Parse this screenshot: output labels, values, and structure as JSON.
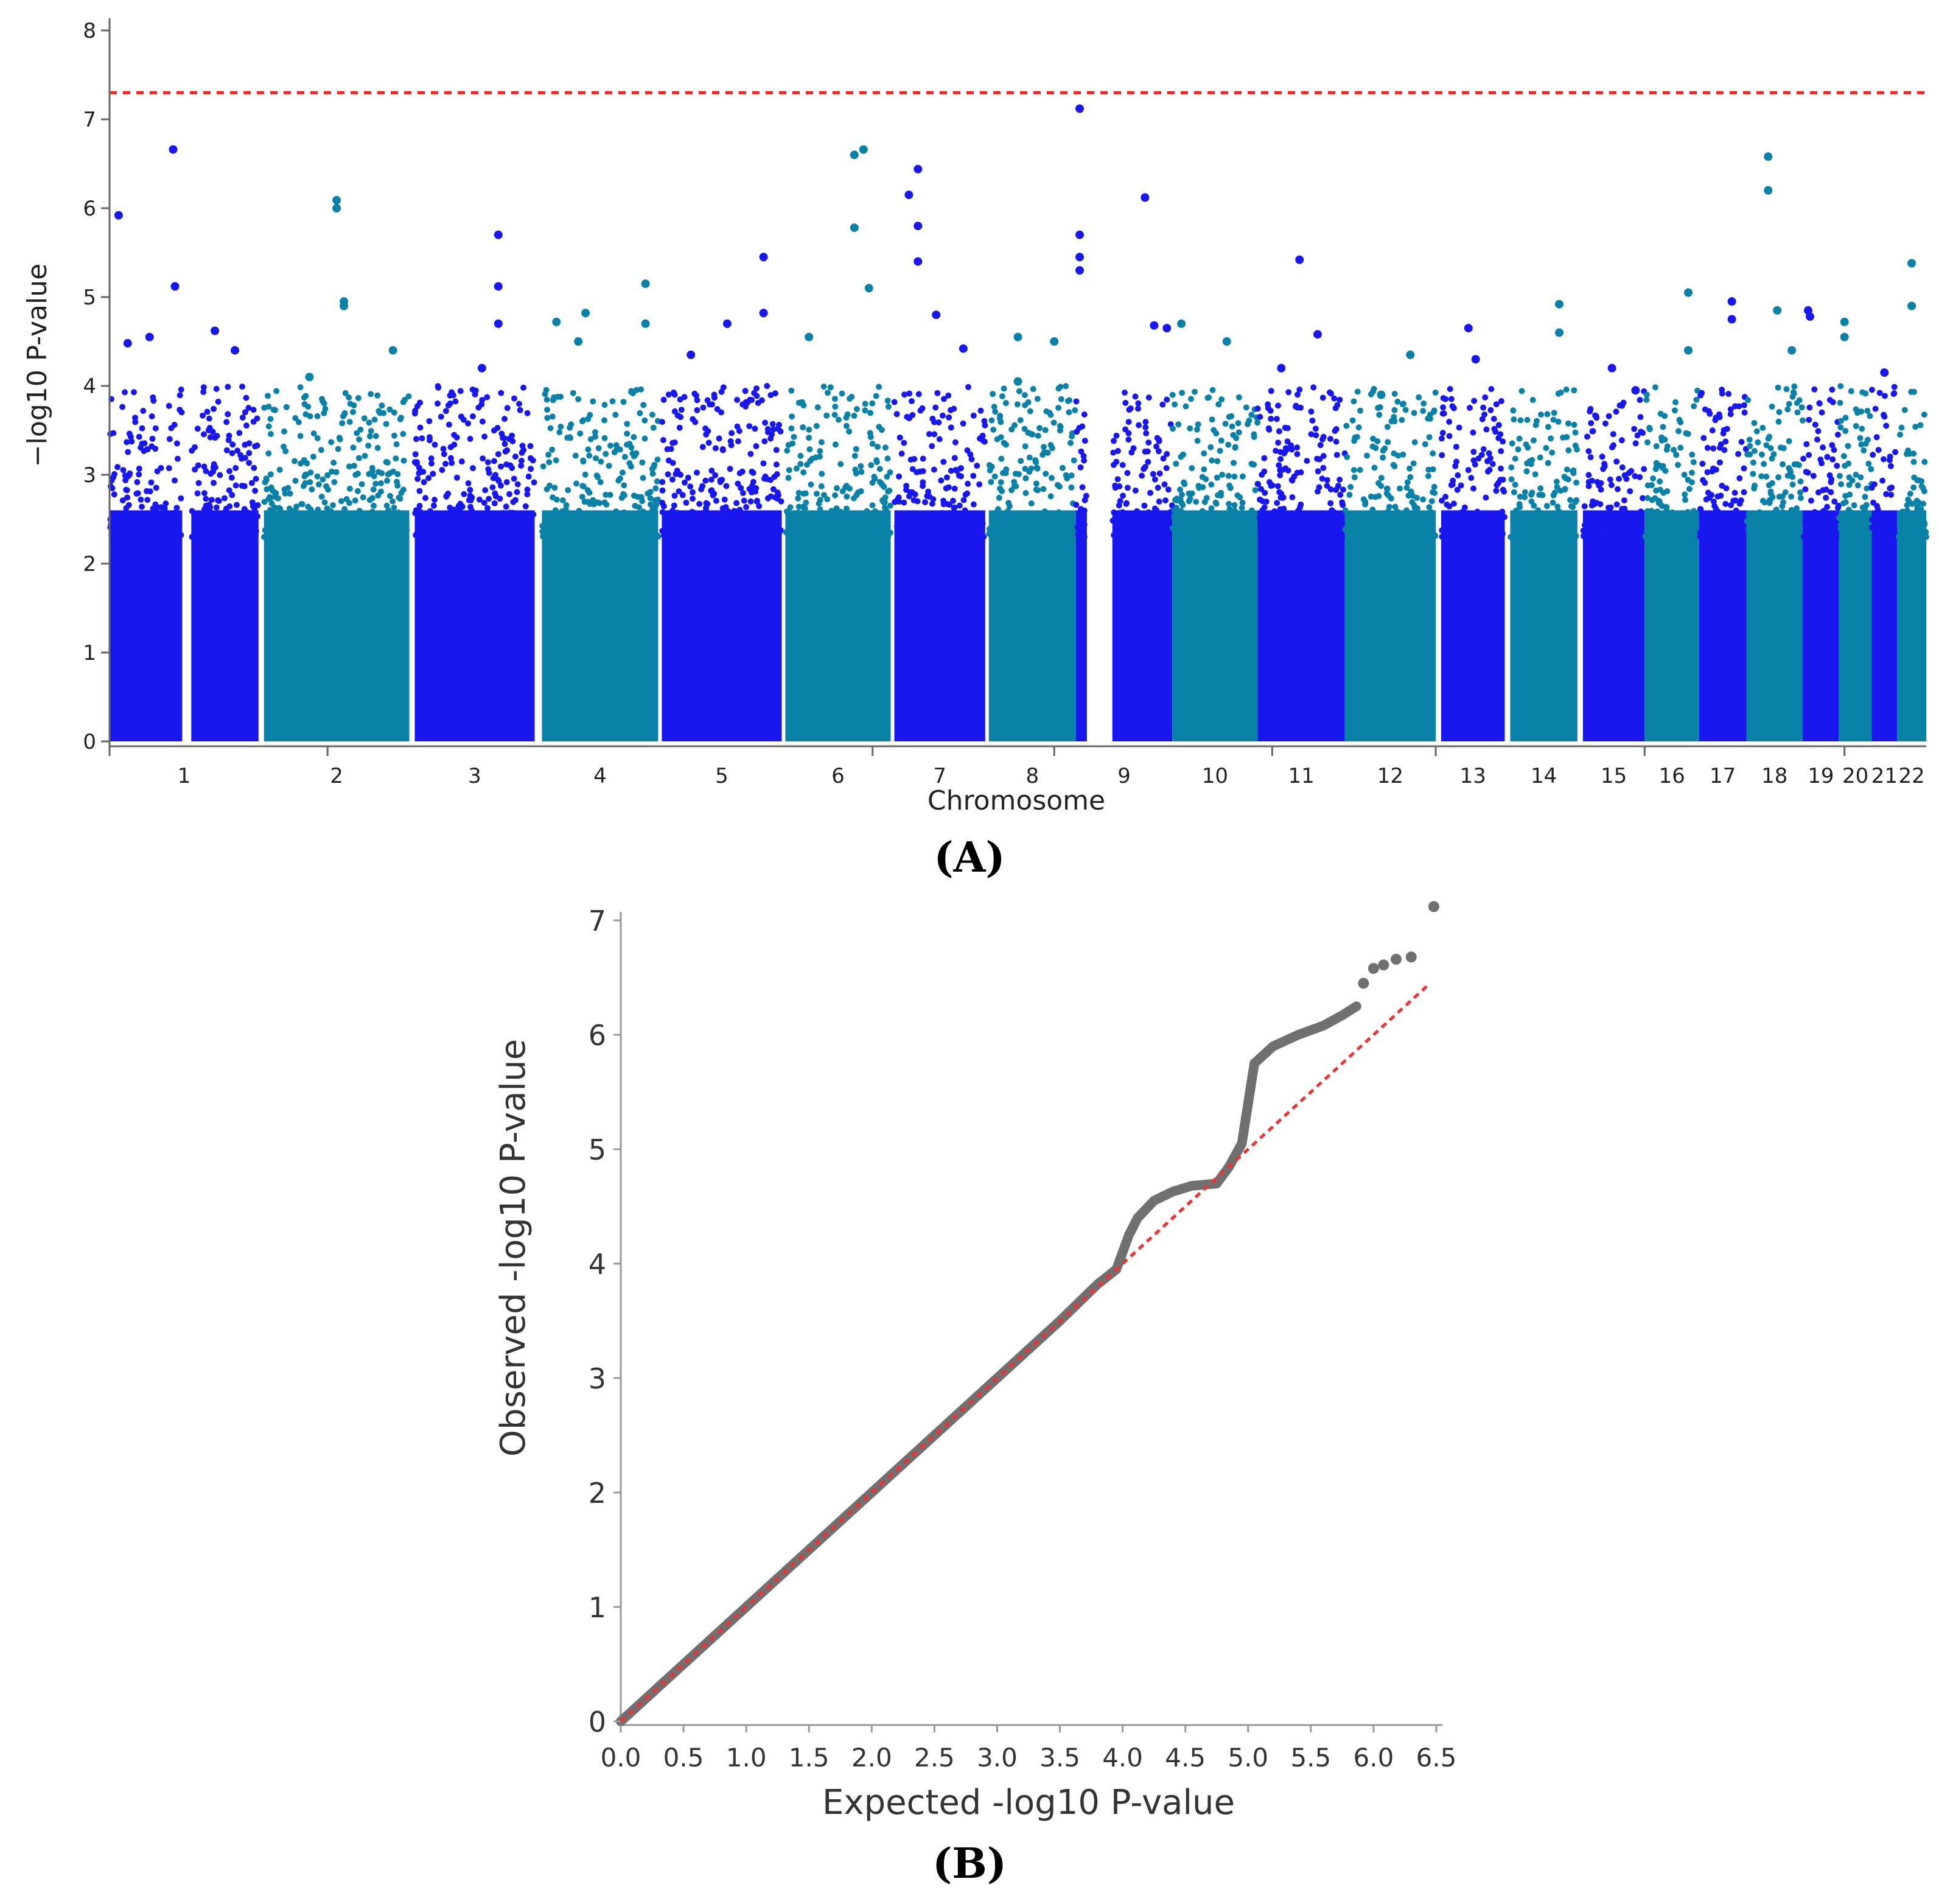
{
  "panel_a_label": "(A)",
  "panel_b_label": "(B)",
  "chart_data": [
    {
      "type": "scatter",
      "subtype": "manhattan",
      "xlabel": "Chromosome",
      "ylabel": "−log10 P-value",
      "ylim": [
        0,
        8
      ],
      "yticks": [
        0,
        1,
        2,
        3,
        4,
        5,
        6,
        7,
        8
      ],
      "threshold": 7.3,
      "colors": {
        "odd": "#1717ee",
        "even": "#0a82a8",
        "threshold": "#ee2222",
        "axis": "#666666"
      },
      "chromosomes": [
        {
          "label": "1",
          "span": [
            0.0,
            0.082
          ],
          "gap": [
            0.04,
            0.045
          ],
          "peaks": [
            [
              0.005,
              5.92
            ],
            [
              0.035,
              6.66
            ],
            [
              0.036,
              5.12
            ],
            [
              0.022,
              4.55
            ],
            [
              0.01,
              4.48
            ],
            [
              0.058,
              4.62
            ],
            [
              0.069,
              4.4
            ]
          ]
        },
        {
          "label": "2",
          "span": [
            0.085,
            0.165
          ],
          "peaks": [
            [
              0.125,
              6.09
            ],
            [
              0.125,
              6.0
            ],
            [
              0.129,
              4.95
            ],
            [
              0.129,
              4.9
            ],
            [
              0.11,
              4.1
            ],
            [
              0.156,
              4.4
            ]
          ]
        },
        {
          "label": "3",
          "span": [
            0.168,
            0.234
          ],
          "peaks": [
            [
              0.214,
              5.7
            ],
            [
              0.214,
              5.12
            ],
            [
              0.214,
              4.7
            ],
            [
              0.205,
              4.2
            ]
          ]
        },
        {
          "label": "4",
          "span": [
            0.238,
            0.302
          ],
          "peaks": [
            [
              0.246,
              4.72
            ],
            [
              0.262,
              4.82
            ],
            [
              0.295,
              5.15
            ],
            [
              0.295,
              4.7
            ],
            [
              0.258,
              4.5
            ]
          ]
        },
        {
          "label": "5",
          "span": [
            0.304,
            0.37
          ],
          "peaks": [
            [
              0.36,
              5.45
            ],
            [
              0.36,
              4.82
            ],
            [
              0.34,
              4.7
            ],
            [
              0.32,
              4.35
            ]
          ]
        },
        {
          "label": "6",
          "span": [
            0.372,
            0.43
          ],
          "peaks": [
            [
              0.41,
              6.6
            ],
            [
              0.415,
              6.66
            ],
            [
              0.41,
              5.78
            ],
            [
              0.418,
              5.1
            ],
            [
              0.385,
              4.55
            ]
          ]
        },
        {
          "label": "7",
          "span": [
            0.432,
            0.482
          ],
          "peaks": [
            [
              0.445,
              6.44
            ],
            [
              0.44,
              6.15
            ],
            [
              0.445,
              5.8
            ],
            [
              0.445,
              5.4
            ],
            [
              0.47,
              4.42
            ],
            [
              0.455,
              4.8
            ]
          ]
        },
        {
          "label": "8",
          "span": [
            0.484,
            0.532
          ],
          "peaks": [
            [
              0.5,
              4.55
            ],
            [
              0.52,
              4.5
            ],
            [
              0.5,
              4.05
            ]
          ]
        },
        {
          "label": "9",
          "span": [
            0.532,
            0.585
          ],
          "gap": [
            0.538,
            0.552
          ],
          "peaks": [
            [
              0.534,
              7.12
            ],
            [
              0.534,
              5.7
            ],
            [
              0.534,
              5.45
            ],
            [
              0.534,
              5.3
            ],
            [
              0.57,
              6.12
            ],
            [
              0.575,
              4.68
            ],
            [
              0.582,
              4.65
            ]
          ]
        },
        {
          "label": "10",
          "span": [
            0.585,
            0.632
          ],
          "peaks": [
            [
              0.59,
              4.7
            ],
            [
              0.615,
              4.5
            ]
          ]
        },
        {
          "label": "11",
          "span": [
            0.632,
            0.68
          ],
          "peaks": [
            [
              0.655,
              5.42
            ],
            [
              0.665,
              4.58
            ],
            [
              0.645,
              4.2
            ]
          ]
        },
        {
          "label": "12",
          "span": [
            0.68,
            0.73
          ],
          "peaks": [
            [
              0.716,
              4.35
            ],
            [
              0.7,
              3.9
            ]
          ]
        },
        {
          "label": "13",
          "span": [
            0.733,
            0.768
          ],
          "peaks": [
            [
              0.748,
              4.65
            ],
            [
              0.752,
              4.3
            ]
          ]
        },
        {
          "label": "14",
          "span": [
            0.771,
            0.808
          ],
          "peaks": [
            [
              0.798,
              4.92
            ],
            [
              0.798,
              4.6
            ]
          ]
        },
        {
          "label": "15",
          "span": [
            0.811,
            0.845
          ],
          "peaks": [
            [
              0.827,
              4.2
            ],
            [
              0.84,
              3.95
            ]
          ]
        },
        {
          "label": "16",
          "span": [
            0.845,
            0.875
          ],
          "peaks": [
            [
              0.869,
              5.05
            ],
            [
              0.869,
              4.4
            ]
          ]
        },
        {
          "label": "17",
          "span": [
            0.875,
            0.901
          ],
          "peaks": [
            [
              0.893,
              4.95
            ],
            [
              0.893,
              4.75
            ]
          ]
        },
        {
          "label": "18",
          "span": [
            0.901,
            0.932
          ],
          "peaks": [
            [
              0.913,
              6.58
            ],
            [
              0.913,
              6.2
            ],
            [
              0.918,
              4.85
            ],
            [
              0.926,
              4.4
            ]
          ]
        },
        {
          "label": "19",
          "span": [
            0.932,
            0.952
          ],
          "peaks": [
            [
              0.935,
              4.85
            ],
            [
              0.936,
              4.78
            ]
          ]
        },
        {
          "label": "20",
          "span": [
            0.952,
            0.97
          ],
          "peaks": [
            [
              0.955,
              4.72
            ],
            [
              0.955,
              4.55
            ]
          ]
        },
        {
          "label": "21",
          "span": [
            0.97,
            0.984
          ],
          "peaks": [
            [
              0.977,
              4.15
            ]
          ]
        },
        {
          "label": "22",
          "span": [
            0.984,
            1.0
          ],
          "peaks": [
            [
              0.992,
              5.38
            ],
            [
              0.992,
              4.9
            ]
          ]
        }
      ]
    },
    {
      "type": "scatter",
      "subtype": "qq",
      "xlabel": "Expected -log10 P-value",
      "ylabel": "Observed -log10 P-value",
      "xlim": [
        0,
        6.5
      ],
      "ylim": [
        0,
        7.2
      ],
      "xticks": [
        0.0,
        0.5,
        1.0,
        1.5,
        2.0,
        2.5,
        3.0,
        3.5,
        4.0,
        4.5,
        5.0,
        5.5,
        6.0,
        6.5
      ],
      "xtick_labels": [
        "0.0",
        "0.5",
        "1.0",
        "1.5",
        "2.0",
        "2.5",
        "3.0",
        "3.5",
        "4.0",
        "4.5",
        "5.0",
        "5.5",
        "6.0",
        "6.5"
      ],
      "yticks": [
        0,
        1,
        2,
        3,
        4,
        5,
        6,
        7
      ],
      "colors": {
        "points": "#707070",
        "reference": "#ee3333",
        "axis": "#999999"
      },
      "reference_line": [
        [
          0,
          0
        ],
        [
          6.45,
          6.45
        ]
      ],
      "curve": [
        [
          0.0,
          0.0
        ],
        [
          1.0,
          1.0
        ],
        [
          2.0,
          2.0
        ],
        [
          3.0,
          3.0
        ],
        [
          3.5,
          3.5
        ],
        [
          3.8,
          3.82
        ],
        [
          3.95,
          3.95
        ],
        [
          4.05,
          4.25
        ],
        [
          4.12,
          4.4
        ],
        [
          4.25,
          4.55
        ],
        [
          4.4,
          4.63
        ],
        [
          4.55,
          4.68
        ],
        [
          4.75,
          4.7
        ],
        [
          4.85,
          4.85
        ],
        [
          4.95,
          5.05
        ],
        [
          5.0,
          5.4
        ],
        [
          5.05,
          5.75
        ],
        [
          5.2,
          5.9
        ],
        [
          5.4,
          6.0
        ],
        [
          5.6,
          6.08
        ],
        [
          5.75,
          6.17
        ],
        [
          5.88,
          6.26
        ]
      ],
      "tail_points": [
        [
          5.92,
          6.45
        ],
        [
          6.0,
          6.58
        ],
        [
          6.08,
          6.61
        ],
        [
          6.18,
          6.66
        ],
        [
          6.3,
          6.68
        ],
        [
          6.48,
          7.12
        ]
      ]
    }
  ]
}
